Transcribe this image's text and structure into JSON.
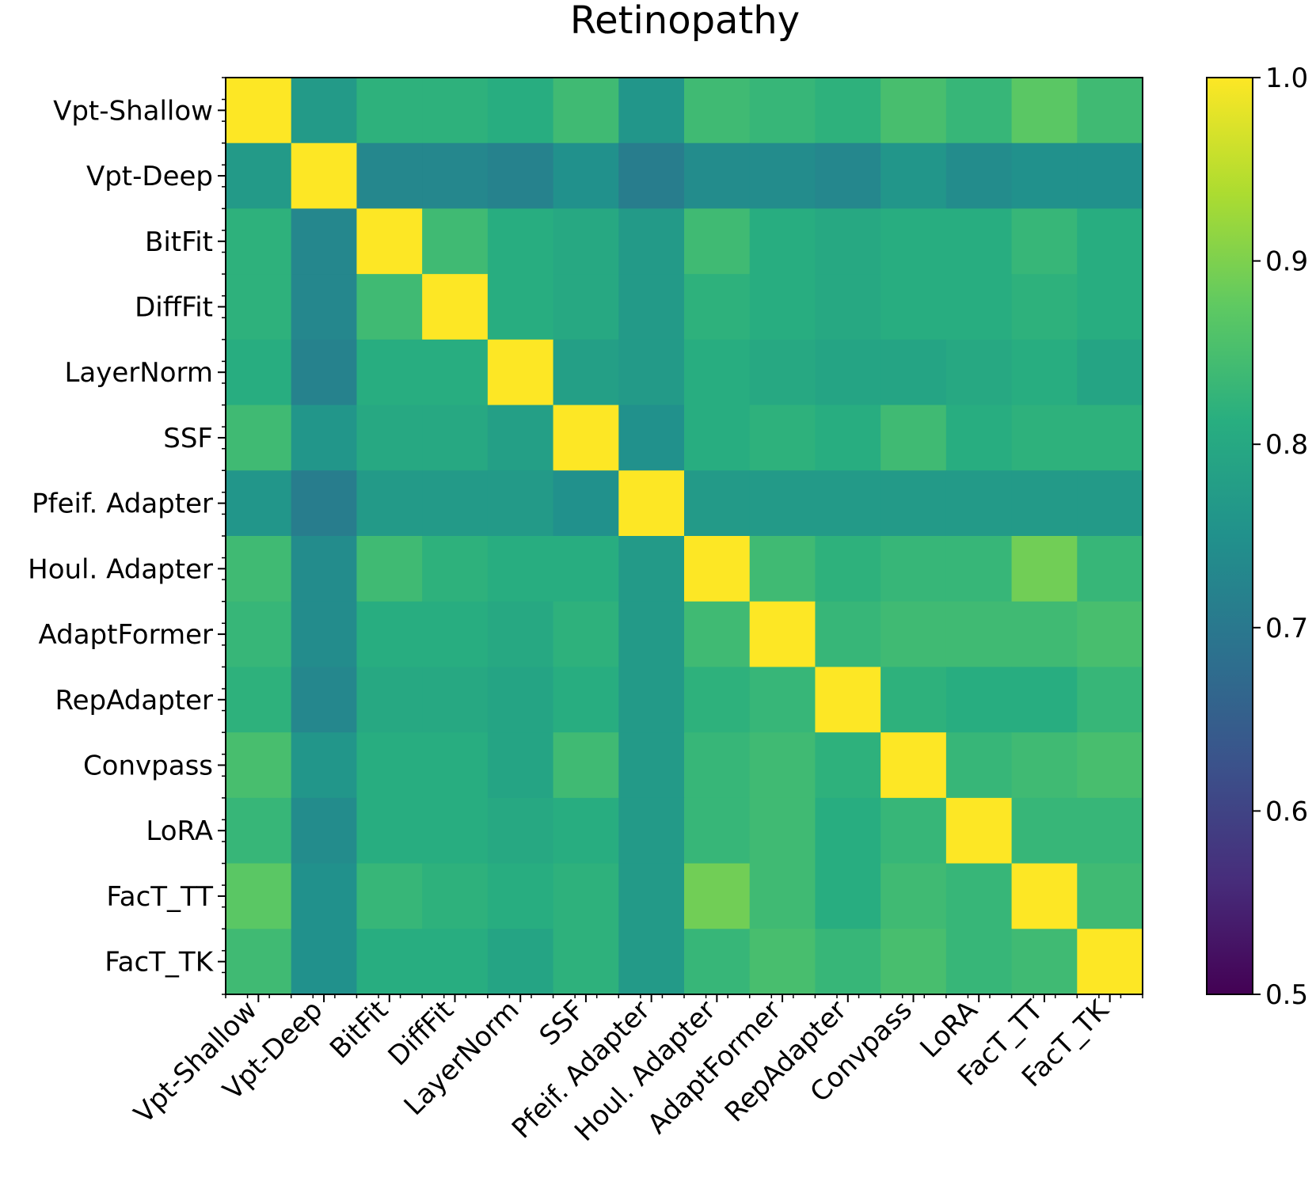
{
  "chart_data": {
    "type": "heatmap",
    "title": "Retinopathy",
    "xlabel": "",
    "ylabel": "",
    "labels": [
      "Vpt-Shallow",
      "Vpt-Deep",
      "BitFit",
      "DiffFit",
      "LayerNorm",
      "SSF",
      "Pfeif. Adapter",
      "Houl. Adapter",
      "AdaptFormer",
      "RepAdapter",
      "Convpass",
      "LoRA",
      "FacT_TT",
      "FacT_TK"
    ],
    "colormap": "viridis",
    "vmin": 0.5,
    "vmax": 1.0,
    "colorbar_ticks": [
      "0.5",
      "0.6",
      "0.7",
      "0.8",
      "0.9",
      "1.0"
    ],
    "matrix": [
      [
        1.0,
        0.77,
        0.82,
        0.82,
        0.81,
        0.84,
        0.76,
        0.84,
        0.83,
        0.82,
        0.85,
        0.83,
        0.87,
        0.84
      ],
      [
        0.77,
        1.0,
        0.73,
        0.73,
        0.72,
        0.75,
        0.71,
        0.74,
        0.74,
        0.73,
        0.76,
        0.74,
        0.75,
        0.75
      ],
      [
        0.82,
        0.73,
        1.0,
        0.84,
        0.81,
        0.8,
        0.77,
        0.84,
        0.81,
        0.8,
        0.81,
        0.81,
        0.83,
        0.81
      ],
      [
        0.82,
        0.73,
        0.84,
        1.0,
        0.81,
        0.8,
        0.77,
        0.82,
        0.81,
        0.8,
        0.81,
        0.81,
        0.82,
        0.81
      ],
      [
        0.81,
        0.72,
        0.81,
        0.81,
        1.0,
        0.78,
        0.77,
        0.81,
        0.8,
        0.79,
        0.79,
        0.8,
        0.81,
        0.79
      ],
      [
        0.84,
        0.76,
        0.8,
        0.8,
        0.78,
        1.0,
        0.75,
        0.81,
        0.82,
        0.81,
        0.84,
        0.81,
        0.82,
        0.82
      ],
      [
        0.76,
        0.71,
        0.77,
        0.77,
        0.77,
        0.75,
        1.0,
        0.77,
        0.77,
        0.77,
        0.77,
        0.77,
        0.77,
        0.77
      ],
      [
        0.84,
        0.74,
        0.84,
        0.82,
        0.81,
        0.81,
        0.77,
        1.0,
        0.84,
        0.82,
        0.83,
        0.83,
        0.89,
        0.83
      ],
      [
        0.83,
        0.74,
        0.81,
        0.81,
        0.8,
        0.82,
        0.77,
        0.84,
        1.0,
        0.83,
        0.84,
        0.84,
        0.84,
        0.85
      ],
      [
        0.82,
        0.73,
        0.8,
        0.8,
        0.79,
        0.81,
        0.77,
        0.82,
        0.83,
        1.0,
        0.82,
        0.81,
        0.81,
        0.83
      ],
      [
        0.85,
        0.76,
        0.81,
        0.81,
        0.79,
        0.84,
        0.77,
        0.83,
        0.84,
        0.82,
        1.0,
        0.83,
        0.84,
        0.85
      ],
      [
        0.83,
        0.74,
        0.81,
        0.81,
        0.8,
        0.81,
        0.77,
        0.83,
        0.84,
        0.81,
        0.83,
        1.0,
        0.83,
        0.83
      ],
      [
        0.87,
        0.75,
        0.83,
        0.82,
        0.81,
        0.82,
        0.77,
        0.89,
        0.84,
        0.81,
        0.84,
        0.83,
        1.0,
        0.84
      ],
      [
        0.84,
        0.75,
        0.81,
        0.81,
        0.79,
        0.82,
        0.77,
        0.83,
        0.85,
        0.83,
        0.85,
        0.83,
        0.84,
        1.0
      ]
    ]
  }
}
